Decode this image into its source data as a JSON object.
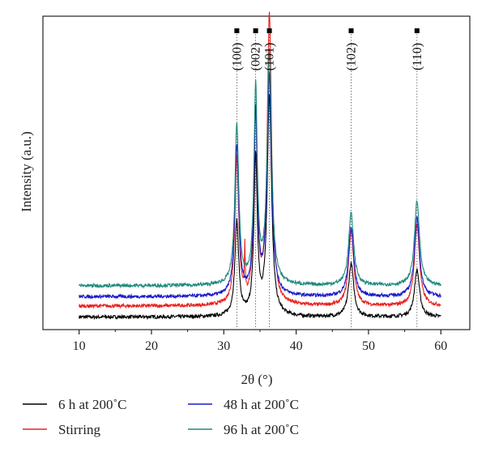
{
  "chart_data": {
    "type": "line",
    "title": "",
    "xlabel": "2θ (°)",
    "ylabel": "Intensity (a.u.)",
    "xlim": [
      5,
      64
    ],
    "ylim": [
      0,
      100
    ],
    "x_ticks": [
      10,
      20,
      30,
      40,
      50,
      60
    ],
    "x_tick_labels": [
      "10",
      "20",
      "30",
      "40",
      "50",
      "60"
    ],
    "y_ticks_shown": false,
    "grid": false,
    "legend_position": "bottom",
    "peaks": [
      {
        "label": "(100)",
        "x": 31.8
      },
      {
        "label": "(002)",
        "x": 34.4
      },
      {
        "label": "(101)",
        "x": 36.3
      },
      {
        "label": "(102)",
        "x": 47.6
      },
      {
        "label": "(110)",
        "x": 56.7
      }
    ],
    "series": [
      {
        "name": "6 h at 200˚C",
        "color": "#000000",
        "baseline": 4.0,
        "peak_heights": [
          30,
          50,
          70,
          17,
          15
        ]
      },
      {
        "name": "Stirring",
        "color": "#e8221f",
        "baseline": 7.5,
        "peak_heights": [
          47,
          60,
          92,
          24,
          26
        ]
      },
      {
        "name": "48 h at 200˚C",
        "color": "#1a1acc",
        "baseline": 10.5,
        "peak_heights": [
          48,
          58,
          70,
          22,
          25
        ]
      },
      {
        "name": "96 h at 200˚C",
        "color": "#1e8a7e",
        "baseline": 14.0,
        "peak_heights": [
          51,
          62,
          74,
          23,
          27
        ]
      }
    ]
  }
}
